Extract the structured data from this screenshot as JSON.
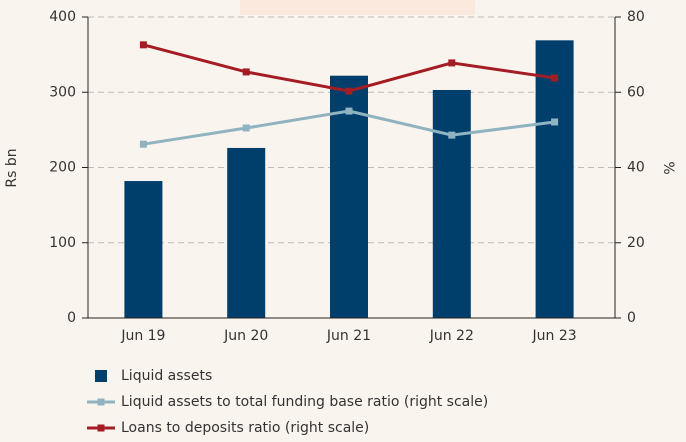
{
  "chart_data": {
    "type": "bar_line",
    "categories": [
      "Jun 19",
      "Jun 20",
      "Jun 21",
      "Jun 22",
      "Jun 23"
    ],
    "ylabel": "Rs bn",
    "y2label": "%",
    "ylim": [
      0,
      400
    ],
    "yticks": [
      0,
      100,
      200,
      300,
      400
    ],
    "y2lim": [
      0,
      80
    ],
    "y2ticks": [
      0,
      20,
      40,
      60,
      80
    ],
    "grid": true,
    "series": [
      {
        "name": "Liquid assets",
        "type": "bar",
        "color": "#003f6b",
        "values": [
          182,
          226,
          322,
          303,
          369
        ]
      },
      {
        "name": "Liquid assets to total funding base ratio (right scale)",
        "type": "line",
        "axis": "y2",
        "color": "#8fb3c0",
        "values": [
          46.2,
          50.5,
          55,
          48.6,
          52.1
        ]
      },
      {
        "name": "Loans to deposits ratio (right scale)",
        "type": "line",
        "axis": "y2",
        "color": "#a51d24",
        "values": [
          72.6,
          65.4,
          60.3,
          67.8,
          63.8
        ]
      }
    ]
  }
}
